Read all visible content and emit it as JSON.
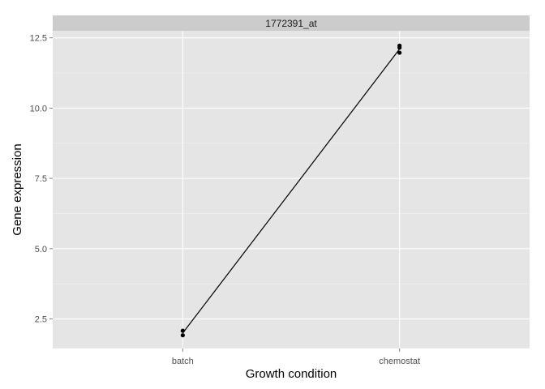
{
  "chart_data": {
    "type": "line",
    "facet_title": "1772391_at",
    "xlabel": "Growth condition",
    "ylabel": "Gene expression",
    "categories": [
      "batch",
      "chemostat"
    ],
    "ylim": [
      1.45,
      12.75
    ],
    "yticks": [
      2.5,
      5.0,
      7.5,
      10.0,
      12.5
    ],
    "ytick_labels": [
      "2.5",
      "5.0",
      "7.5",
      "10.0",
      "12.5"
    ],
    "points": [
      {
        "x": "batch",
        "y": 1.92
      },
      {
        "x": "batch",
        "y": 2.08
      },
      {
        "x": "chemostat",
        "y": 11.97
      },
      {
        "x": "chemostat",
        "y": 12.15
      },
      {
        "x": "chemostat",
        "y": 12.22
      }
    ],
    "line": [
      {
        "x": "batch",
        "y": 2.0
      },
      {
        "x": "chemostat",
        "y": 12.1
      }
    ],
    "grid": true,
    "legend": "none",
    "colors": {
      "panel_bg": "#e5e5e5",
      "strip_bg": "#cccccc",
      "grid_major": "#ffffff",
      "grid_minor": "#f2f2f2",
      "line": "#000000",
      "point": "#000000"
    }
  }
}
